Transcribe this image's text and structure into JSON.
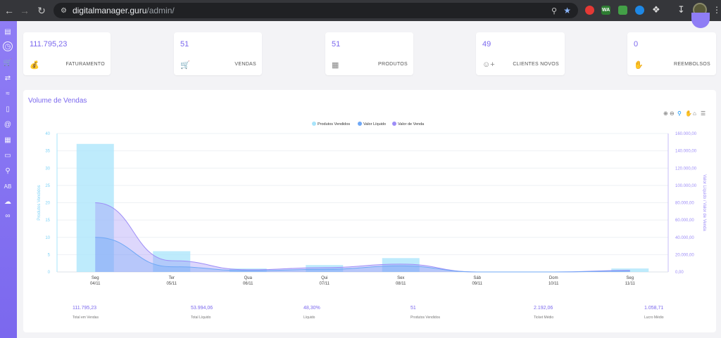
{
  "browser": {
    "url_host": "digitalmanager.guru",
    "url_path": "/admin/",
    "extensions": [
      {
        "name": "record-extension",
        "label": "",
        "color": "#e53935"
      },
      {
        "name": "wa-extension",
        "label": "WA",
        "color": "#2e7d32"
      },
      {
        "name": "screen-extension",
        "label": "",
        "color": "#43a047"
      },
      {
        "name": "blue-extension",
        "label": "",
        "color": "#1e88e5"
      }
    ]
  },
  "cards": [
    {
      "value": "111.795,23",
      "label": "FATURAMENTO",
      "icon": "money-bag-icon"
    },
    {
      "value": "51",
      "label": "VENDAS",
      "icon": "cart-icon"
    },
    {
      "value": "51",
      "label": "PRODUTOS",
      "icon": "box-icon"
    },
    {
      "value": "49",
      "label": "CLIENTES NOVOS",
      "icon": "user-plus-icon"
    },
    {
      "value": "0",
      "label": "REEMBOLSOS",
      "icon": "refund-hand-icon"
    }
  ],
  "panel": {
    "title": "Volume de Vendas"
  },
  "chart_data": {
    "type": "bar",
    "legend": [
      "Produtos Vendidos",
      "Valor Líquido",
      "Valor de Venda"
    ],
    "legend_position": "top-center",
    "categories": [
      {
        "day": "Seg",
        "date": "04/11"
      },
      {
        "day": "Ter",
        "date": "05/11"
      },
      {
        "day": "Qua",
        "date": "06/11"
      },
      {
        "day": "Qui",
        "date": "07/11"
      },
      {
        "day": "Sex",
        "date": "08/11"
      },
      {
        "day": "Sáb",
        "date": "09/11"
      },
      {
        "day": "Dom",
        "date": "10/11"
      },
      {
        "day": "Seg",
        "date": "11/11"
      }
    ],
    "series": [
      {
        "name": "Produtos Vendidos",
        "type": "bar",
        "axis": "left",
        "color": "#a8e4fb",
        "values": [
          37,
          6,
          1,
          2,
          4,
          0,
          0,
          1
        ]
      },
      {
        "name": "Valor Líquido",
        "type": "area",
        "axis": "right",
        "color": "#6fa8f6",
        "values": [
          40000,
          6000,
          1500,
          3000,
          7000,
          0,
          0,
          1000
        ]
      },
      {
        "name": "Valor de Venda",
        "type": "area",
        "axis": "right",
        "color": "#9d8df7",
        "values": [
          80000,
          13000,
          2500,
          5000,
          9000,
          0,
          0,
          1800
        ]
      }
    ],
    "ylabel_left": "Produtos Vendidos",
    "ylabel_right": "Valor Líquido / Valor de Venda",
    "yticks_left": [
      "0",
      "5",
      "10",
      "15",
      "20",
      "25",
      "30",
      "35",
      "40"
    ],
    "yticks_right": [
      "0,00",
      "20.000,00",
      "40.000,00",
      "60.000,00",
      "80.000,00",
      "100.000,00",
      "120.000,00",
      "140.000,00",
      "160.000,00"
    ],
    "ylim_left": [
      0,
      40
    ],
    "ylim_right": [
      0,
      160000
    ],
    "grid": true
  },
  "stats": [
    {
      "value": "111.795,23",
      "label": "Total em Vendas"
    },
    {
      "value": "53.994,06",
      "label": "Total Líquido"
    },
    {
      "value": "48,30%",
      "label": "Líquido"
    },
    {
      "value": "51",
      "label": "Produtos Vendidos"
    },
    {
      "value": "2.192,06",
      "label": "Ticket Médio"
    },
    {
      "value": "1.058,71",
      "label": "Lucro Médio"
    }
  ]
}
